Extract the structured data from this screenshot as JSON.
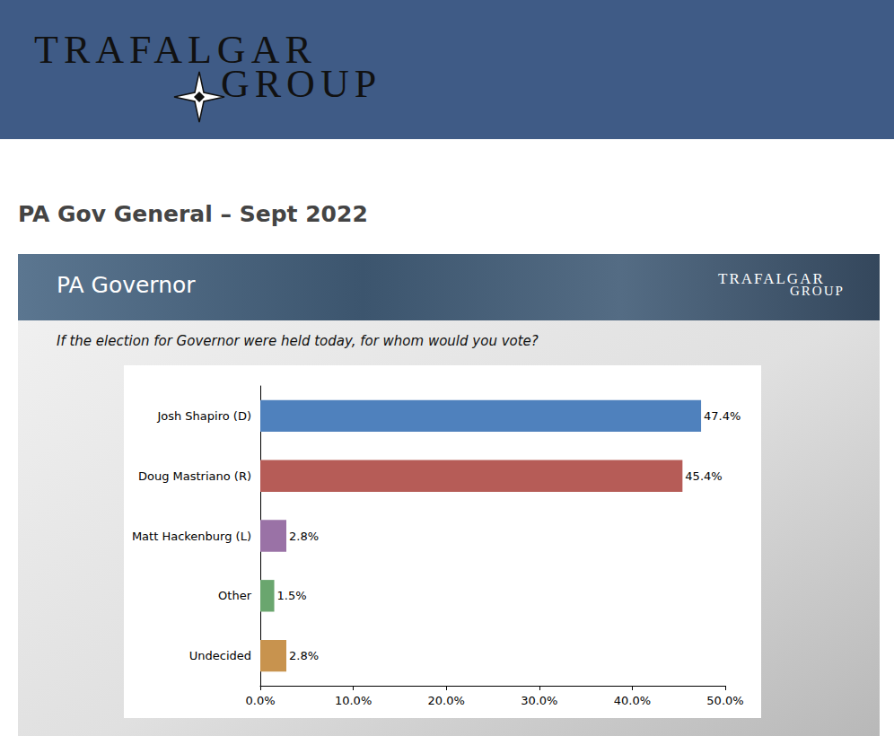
{
  "page": {
    "logo": {
      "line1": "TRAFALGAR",
      "line2": "GROUP"
    },
    "title": "PA Gov General – Sept 2022"
  },
  "chart_data": {
    "type": "bar",
    "orientation": "horizontal",
    "title": "PA Governor",
    "subtitle": "If the election for Governor were held today, for whom would you vote?",
    "categories": [
      "Josh Shapiro (D)",
      "Doug Mastriano (R)",
      "Matt Hackenburg (L)",
      "Other",
      "Undecided"
    ],
    "values": [
      47.4,
      45.4,
      2.8,
      1.5,
      2.8
    ],
    "value_labels": [
      "47.4%",
      "45.4%",
      "2.8%",
      "1.5%",
      "2.8%"
    ],
    "colors": [
      "#4f81bd",
      "#b65c57",
      "#9a72a6",
      "#6aa66e",
      "#c8934e"
    ],
    "xlim": [
      0,
      50
    ],
    "xticks": [
      {
        "value": 0,
        "label": "0.0%"
      },
      {
        "value": 10,
        "label": "10.0%"
      },
      {
        "value": 20,
        "label": "20.0%"
      },
      {
        "value": 30,
        "label": "30.0%"
      },
      {
        "value": 40,
        "label": "40.0%"
      },
      {
        "value": 50,
        "label": "50.0%"
      }
    ],
    "grid": false,
    "data_labels": true
  }
}
